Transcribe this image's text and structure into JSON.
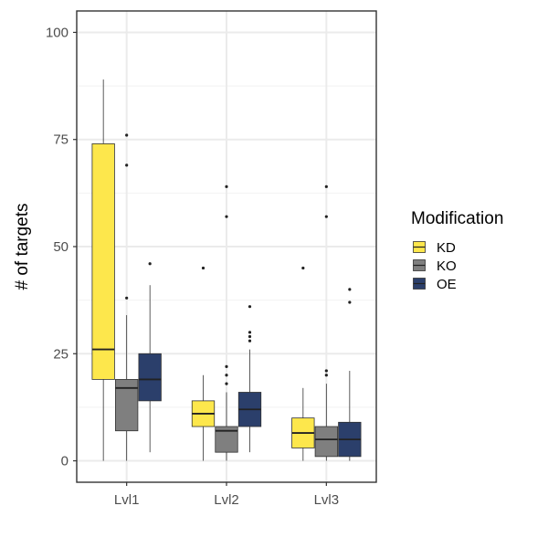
{
  "chart_data": {
    "type": "boxplot",
    "title": "",
    "xlabel": "",
    "ylabel": "# of targets",
    "ylim": [
      -5,
      105
    ],
    "yticks": [
      0,
      25,
      50,
      75,
      100
    ],
    "categories": [
      "Lvl1",
      "Lvl2",
      "Lvl3"
    ],
    "grid": true,
    "legend": {
      "title": "Modification",
      "position": "right"
    },
    "series": [
      {
        "name": "KD",
        "color": "#FDE74C",
        "boxes": [
          {
            "category": "Lvl1",
            "min": 0,
            "q1": 19,
            "median": 26,
            "q3": 74,
            "max": 89,
            "outliers": []
          },
          {
            "category": "Lvl2",
            "min": 0,
            "q1": 8,
            "median": 11,
            "q3": 14,
            "max": 20,
            "outliers": [
              45
            ]
          },
          {
            "category": "Lvl3",
            "min": 0,
            "q1": 3,
            "median": 6.5,
            "q3": 10,
            "max": 17,
            "outliers": [
              45
            ]
          }
        ]
      },
      {
        "name": "KO",
        "color": "#7F7F7F",
        "boxes": [
          {
            "category": "Lvl1",
            "min": 0,
            "q1": 7,
            "median": 17,
            "q3": 19,
            "max": 34,
            "outliers": [
              38,
              69,
              76
            ]
          },
          {
            "category": "Lvl2",
            "min": 0,
            "q1": 2,
            "median": 7,
            "q3": 8,
            "max": 16,
            "outliers": [
              18,
              20,
              22,
              57,
              64
            ]
          },
          {
            "category": "Lvl3",
            "min": 0,
            "q1": 1,
            "median": 5,
            "q3": 8,
            "max": 18,
            "outliers": [
              20,
              21,
              57,
              64
            ]
          }
        ]
      },
      {
        "name": "OE",
        "color": "#2B3F6B",
        "boxes": [
          {
            "category": "Lvl1",
            "min": 2,
            "q1": 14,
            "median": 19,
            "q3": 25,
            "max": 41,
            "outliers": [
              46
            ]
          },
          {
            "category": "Lvl2",
            "min": 2,
            "q1": 8,
            "median": 12,
            "q3": 16,
            "max": 26,
            "outliers": [
              28,
              29,
              30,
              36
            ]
          },
          {
            "category": "Lvl3",
            "min": 0,
            "q1": 1,
            "median": 5,
            "q3": 9,
            "max": 21,
            "outliers": [
              37,
              40
            ]
          }
        ]
      }
    ]
  }
}
